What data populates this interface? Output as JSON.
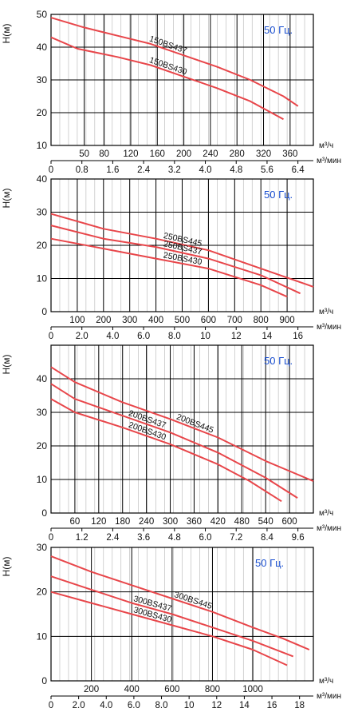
{
  "chart_data": [
    {
      "type": "line",
      "ylabel": "H(м)",
      "ylim": [
        10,
        50
      ],
      "yticks": [
        "10",
        "20",
        "30",
        "40",
        "50"
      ],
      "xlim": [
        0,
        395
      ],
      "x_primary_unit": "м³/ч",
      "x_primary_ticks": [
        "50",
        "80",
        "120",
        "160",
        "200",
        "240",
        "280",
        "320",
        "360"
      ],
      "x_primary_tick_values": [
        50,
        80,
        120,
        160,
        200,
        240,
        280,
        320,
        360
      ],
      "x_secondary_unit": "м³/мин",
      "x_secondary_ticks": [
        "0",
        "0.8",
        "1.6",
        "2.4",
        "3.2",
        "4.0",
        "4.8",
        "5.6",
        "6.4"
      ],
      "frequency_label": "50 Гц.",
      "grid": true,
      "series": [
        {
          "name": "150BS437",
          "x": [
            0,
            50,
            100,
            150,
            200,
            250,
            300,
            350,
            372
          ],
          "y": [
            49,
            46,
            43.5,
            41,
            37.5,
            34,
            30,
            25,
            22
          ]
        },
        {
          "name": "150BS430",
          "x": [
            0,
            40,
            100,
            150,
            200,
            250,
            300,
            350
          ],
          "y": [
            43,
            39.5,
            37,
            34.5,
            31,
            27.5,
            23.5,
            18
          ]
        }
      ]
    },
    {
      "type": "line",
      "ylabel": "H(м)",
      "ylim": [
        0,
        40
      ],
      "yticks": [
        "0",
        "10",
        "20",
        "30",
        "40"
      ],
      "xlim": [
        0,
        1000
      ],
      "x_primary_unit": "м³/ч",
      "x_primary_ticks": [
        "100",
        "200",
        "300",
        "400",
        "500",
        "600",
        "700",
        "800",
        "900"
      ],
      "x_primary_tick_values": [
        100,
        200,
        300,
        400,
        500,
        600,
        700,
        800,
        900
      ],
      "x_secondary_unit": "м³/мин",
      "x_secondary_ticks": [
        "0",
        "2.0",
        "4.0",
        "6.0",
        "8.0",
        "10",
        "12",
        "14",
        "16"
      ],
      "frequency_label": "50 Гц.",
      "grid": true,
      "series": [
        {
          "name": "250BS445",
          "x": [
            0,
            200,
            400,
            600,
            800,
            1000
          ],
          "y": [
            29.5,
            25,
            22,
            18.5,
            13,
            7.5
          ]
        },
        {
          "name": "250BS437",
          "x": [
            0,
            200,
            400,
            600,
            800,
            950
          ],
          "y": [
            26,
            22,
            19.5,
            16,
            11,
            5.5
          ]
        },
        {
          "name": "250BS430",
          "x": [
            0,
            200,
            400,
            600,
            800,
            900
          ],
          "y": [
            22,
            19,
            16,
            13,
            8,
            4.5
          ]
        }
      ]
    },
    {
      "type": "line",
      "ylabel": "H(м)",
      "ylim": [
        0,
        50
      ],
      "yticks": [
        "0",
        "10",
        "20",
        "30",
        "40"
      ],
      "xlim": [
        0,
        660
      ],
      "x_primary_unit": "м³/ч",
      "x_primary_ticks": [
        "60",
        "120",
        "180",
        "240",
        "300",
        "360",
        "420",
        "480",
        "540",
        "600"
      ],
      "x_primary_tick_values": [
        60,
        120,
        180,
        240,
        300,
        360,
        420,
        480,
        540,
        600
      ],
      "x_secondary_unit": "м³/мин",
      "x_secondary_ticks": [
        "0",
        "1.2",
        "2.4",
        "3.6",
        "4.8",
        "6.0",
        "7.2",
        "8.4",
        "9.6"
      ],
      "frequency_label": "50 Гц.",
      "grid": true,
      "series": [
        {
          "name": "200BS445",
          "x": [
            0,
            60,
            180,
            300,
            420,
            540,
            600,
            660
          ],
          "y": [
            43.5,
            39,
            33,
            28,
            22.5,
            15.5,
            12.5,
            9.5
          ]
        },
        {
          "name": "200BS437",
          "x": [
            0,
            60,
            180,
            300,
            420,
            540,
            620
          ],
          "y": [
            38.5,
            34,
            29,
            24,
            18,
            10.5,
            4.5
          ]
        },
        {
          "name": "200BS430",
          "x": [
            0,
            60,
            180,
            300,
            420,
            500,
            580
          ],
          "y": [
            34,
            30,
            25.5,
            20.5,
            14.5,
            9.5,
            3.5
          ]
        }
      ]
    },
    {
      "type": "line",
      "ylabel": "H(м)",
      "ylim": [
        0,
        30
      ],
      "yticks": [
        "0",
        "10",
        "20",
        "30"
      ],
      "xlim": [
        0,
        1300
      ],
      "x_primary_unit": "м³/ч",
      "x_primary_ticks": [
        "200",
        "400",
        "600",
        "800",
        "1000"
      ],
      "x_primary_tick_values": [
        200,
        400,
        600,
        800,
        1000
      ],
      "x_secondary_unit": "м³/мин",
      "x_secondary_ticks": [
        "0",
        "2.0",
        "4.0",
        "6.0",
        "8.0",
        "10",
        "12",
        "14",
        "16",
        "18"
      ],
      "frequency_label": "50 Гц.",
      "grid": true,
      "series": [
        {
          "name": "300BS445",
          "x": [
            0,
            200,
            400,
            600,
            800,
            1000,
            1150,
            1280
          ],
          "y": [
            28,
            24.5,
            21.5,
            18.5,
            15.5,
            12,
            9.5,
            7
          ]
        },
        {
          "name": "300BS437",
          "x": [
            0,
            200,
            400,
            600,
            800,
            1000,
            1200
          ],
          "y": [
            23.5,
            20.5,
            17.5,
            15,
            12,
            9,
            5.5
          ]
        },
        {
          "name": "300BS430",
          "x": [
            0,
            200,
            400,
            600,
            800,
            1000,
            1170
          ],
          "y": [
            20,
            17.5,
            15,
            12.5,
            10,
            7,
            3.5
          ]
        }
      ]
    }
  ],
  "colors": {
    "curve": "#e8464a",
    "grid": "#000000",
    "label": "#1a4fd0",
    "text": "#111111"
  }
}
